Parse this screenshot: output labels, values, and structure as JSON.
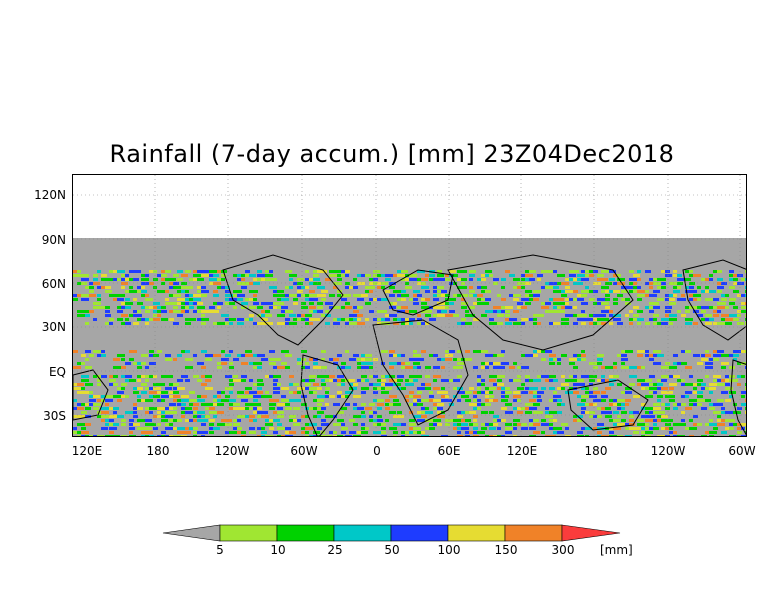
{
  "title": "Rainfall (7-day accum.) [mm] 23Z04Dec2018",
  "y_axis_labels": [
    "120N",
    "90N",
    "60N",
    "30N",
    "EQ",
    "30S"
  ],
  "x_axis_labels": [
    "120E",
    "180",
    "120W",
    "60W",
    "0",
    "60E",
    "120E",
    "180",
    "120W",
    "60W"
  ],
  "legend": {
    "units": "[mm]",
    "ticks": [
      "5",
      "10",
      "25",
      "50",
      "100",
      "150",
      "300"
    ],
    "colors": [
      "#a6a6a6",
      "#a0e632",
      "#00d200",
      "#00c8c8",
      "#1e3cff",
      "#e6dc32",
      "#f08228",
      "#fa3c3c"
    ]
  },
  "map": {
    "no_data_color": "#a6a6a6",
    "land_outline_color": "#000000"
  }
}
